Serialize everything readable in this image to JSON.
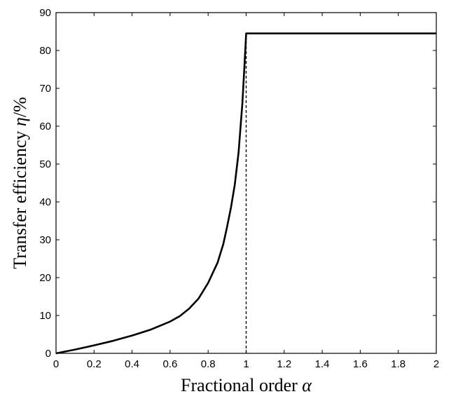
{
  "chart_data": {
    "type": "line",
    "title": "",
    "xlabel": {
      "text": "Fractional order ",
      "symbol": "α"
    },
    "ylabel": {
      "text": "Transfer efficiency ",
      "symbol": "η",
      "unit": "/%"
    },
    "xlim": [
      0,
      2
    ],
    "ylim": [
      0,
      90
    ],
    "x_ticks": [
      "0",
      "0.2",
      "0.4",
      "0.6",
      "0.8",
      "1",
      "1.2",
      "1.4",
      "1.6",
      "1.8",
      "2"
    ],
    "y_ticks": [
      "0",
      "10",
      "20",
      "30",
      "40",
      "50",
      "60",
      "70",
      "80",
      "90"
    ],
    "grid": false,
    "legend": "none",
    "series": [
      {
        "style": "solid",
        "color": "#000000",
        "x": [
          0,
          0.1,
          0.2,
          0.3,
          0.4,
          0.5,
          0.6,
          0.65,
          0.7,
          0.75,
          0.8,
          0.85,
          0.88,
          0.9,
          0.92,
          0.94,
          0.96,
          0.98,
          0.99,
          1.0,
          1.2,
          1.4,
          1.6,
          1.8,
          2.0
        ],
        "y": [
          0,
          1.0,
          2.1,
          3.3,
          4.7,
          6.3,
          8.4,
          9.8,
          11.8,
          14.5,
          18.6,
          24.0,
          28.9,
          33.5,
          38.5,
          44.5,
          53.0,
          66.0,
          75.0,
          84.5,
          84.5,
          84.5,
          84.5,
          84.5,
          84.5
        ]
      },
      {
        "style": "dashed",
        "color": "#000000",
        "x": [
          1,
          1
        ],
        "y": [
          0,
          84.5
        ]
      }
    ]
  }
}
